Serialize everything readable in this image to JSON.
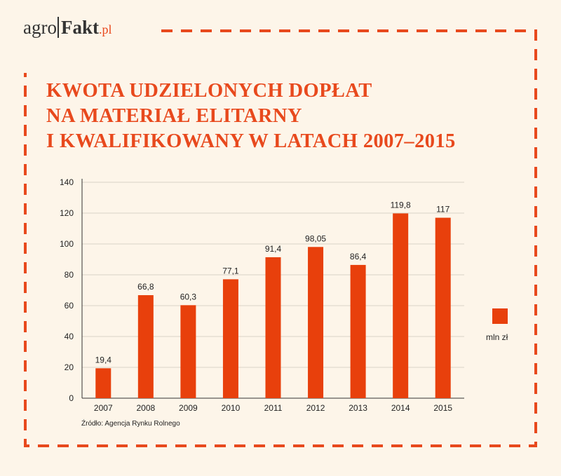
{
  "logo": {
    "agro": "agro",
    "fakt": "Fakt",
    "pl": ".pl"
  },
  "title_lines": [
    "KWOTA UDZIELONYCH DOPŁAT",
    "NA MATERIAŁ ELITARNY",
    "I KWALIFIKOWANY W LATACH 2007–2015"
  ],
  "colors": {
    "accent": "#e8491d",
    "bar": "#e8400c",
    "background": "#fdf5e9",
    "grid": "#d9d2c8"
  },
  "chart_data": {
    "type": "bar",
    "title": "KWOTA UDZIELONYCH DOPŁAT NA MATERIAŁ ELITARNY I KWALIFIKOWANY W LATACH 2007–2015",
    "categories": [
      "2007",
      "2008",
      "2009",
      "2010",
      "2011",
      "2012",
      "2013",
      "2014",
      "2015"
    ],
    "series": [
      {
        "name": "mln zł",
        "values": [
          19.4,
          66.8,
          60.3,
          77.1,
          91.4,
          98.05,
          86.4,
          119.8,
          117
        ],
        "labels": [
          "19,4",
          "66,8",
          "60,3",
          "77,1",
          "91,4",
          "98,05",
          "86,4",
          "119,8",
          "117"
        ]
      }
    ],
    "ylim": [
      0,
      140
    ],
    "yticks": [
      0,
      20,
      40,
      60,
      80,
      100,
      120,
      140
    ],
    "grid": true,
    "legend": "right",
    "xlabel": "",
    "ylabel": ""
  },
  "legend_label": "mln zł",
  "source": "Źródło: Agencja Rynku Rolnego"
}
